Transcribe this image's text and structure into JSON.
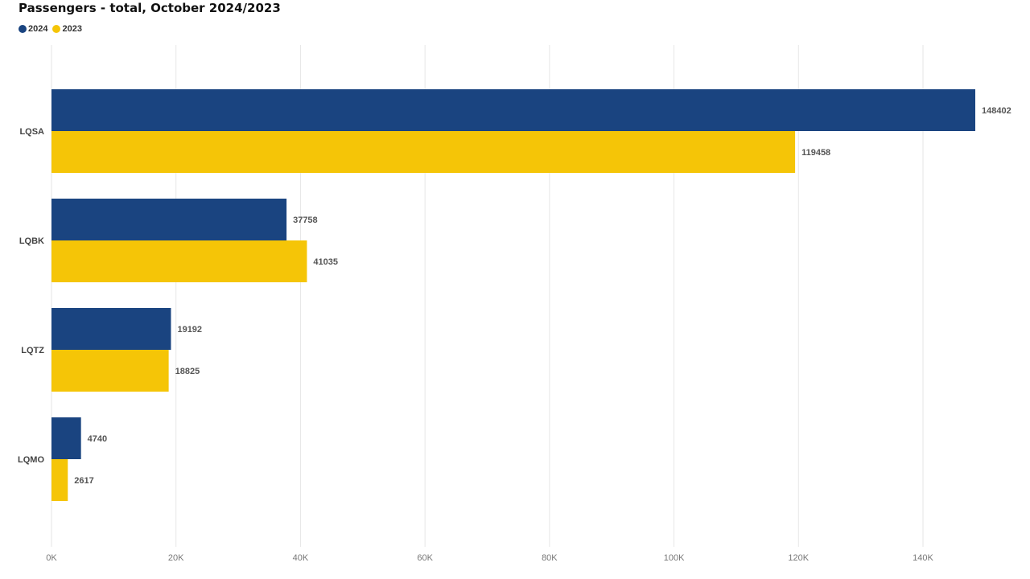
{
  "chart_data": {
    "type": "bar",
    "orientation": "horizontal",
    "title": "Passengers - total, October 2024/2023",
    "categories": [
      "LQSA",
      "LQBK",
      "LQTZ",
      "LQMO"
    ],
    "series": [
      {
        "name": "2024",
        "color": "#1a4480",
        "values": [
          148402,
          37758,
          19192,
          4740
        ]
      },
      {
        "name": "2023",
        "color": "#f5c507",
        "values": [
          119458,
          41035,
          18825,
          2617
        ]
      }
    ],
    "xlim": [
      0,
      150000
    ],
    "xticks": [
      0,
      20000,
      40000,
      60000,
      80000,
      100000,
      120000,
      140000
    ],
    "xtick_labels": [
      "0K",
      "20K",
      "40K",
      "60K",
      "80K",
      "100K",
      "120K",
      "140K"
    ],
    "grid": true,
    "legend_position": "top-left"
  }
}
